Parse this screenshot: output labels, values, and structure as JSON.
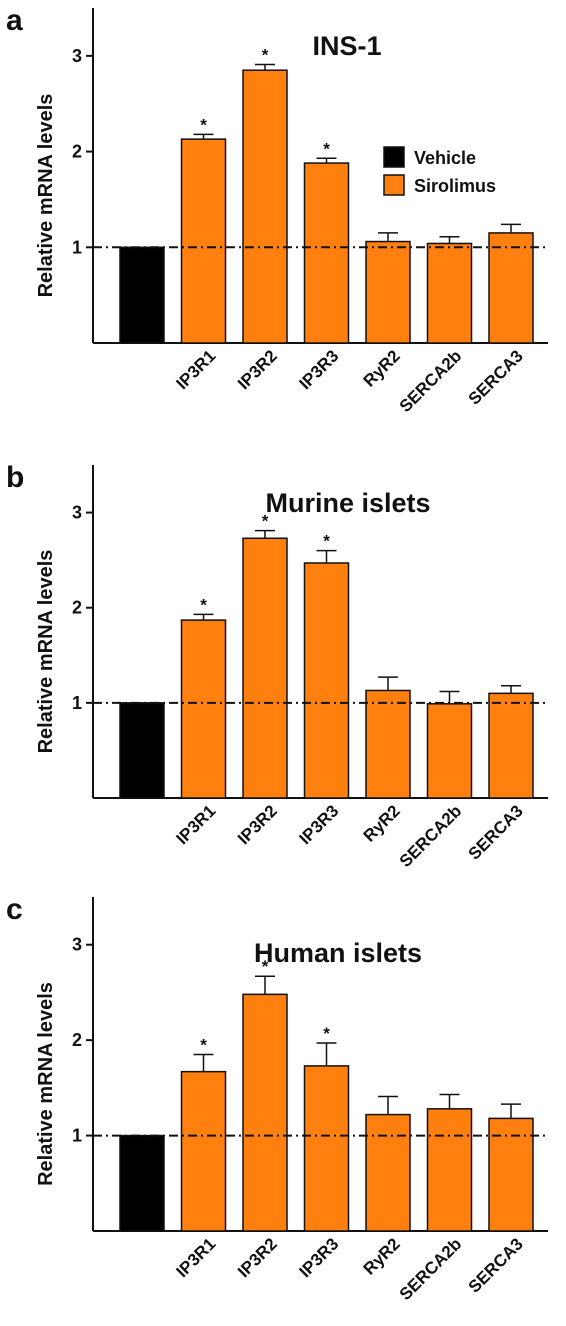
{
  "colors": {
    "vehicle": "#000000",
    "sirolimus": "#ff7f0f",
    "axis": "#111111"
  },
  "legend": {
    "items": [
      {
        "label": "Vehicle",
        "color": "#000000"
      },
      {
        "label": "Sirolimus",
        "color": "#ff7f0f"
      }
    ]
  },
  "chart_data": [
    {
      "type": "bar",
      "panel": "a",
      "title": "INS-1",
      "ylabel": "Relative mRNA levels",
      "ylim": [
        0,
        3.5
      ],
      "yticks": [
        "1",
        "2",
        "3"
      ],
      "categories": [
        "",
        "IP3R1",
        "IP3R2",
        "IP3R3",
        "RyR2",
        "SERCA2b",
        "SERCA3"
      ],
      "values": [
        1.0,
        2.13,
        2.85,
        1.88,
        1.06,
        1.04,
        1.15
      ],
      "errors": [
        0,
        0.05,
        0.06,
        0.05,
        0.09,
        0.07,
        0.09
      ],
      "significant": [
        false,
        true,
        true,
        true,
        false,
        false,
        false
      ],
      "significance_mark": "*",
      "series_colors": [
        "vehicle",
        "sirolimus",
        "sirolimus",
        "sirolimus",
        "sirolimus",
        "sirolimus",
        "sirolimus"
      ],
      "reference_line": 1,
      "legend": "top-right"
    },
    {
      "type": "bar",
      "panel": "b",
      "title": "Murine islets",
      "ylabel": "Relative mRNA levels",
      "ylim": [
        0,
        3.5
      ],
      "yticks": [
        "1",
        "2",
        "3"
      ],
      "categories": [
        "",
        "IP3R1",
        "IP3R2",
        "IP3R3",
        "RyR2",
        "SERCA2b",
        "SERCA3"
      ],
      "values": [
        1.0,
        1.87,
        2.73,
        2.47,
        1.13,
        0.99,
        1.1
      ],
      "errors": [
        0,
        0.06,
        0.08,
        0.13,
        0.14,
        0.13,
        0.08
      ],
      "significant": [
        false,
        true,
        true,
        true,
        false,
        false,
        false
      ],
      "significance_mark": "*",
      "series_colors": [
        "vehicle",
        "sirolimus",
        "sirolimus",
        "sirolimus",
        "sirolimus",
        "sirolimus",
        "sirolimus"
      ],
      "reference_line": 1
    },
    {
      "type": "bar",
      "panel": "c",
      "title": "Human islets",
      "ylabel": "Relative mRNA levels",
      "ylim": [
        0,
        3.5
      ],
      "yticks": [
        "1",
        "2",
        "3"
      ],
      "categories": [
        "",
        "IP3R1",
        "IP3R2",
        "IP3R3",
        "RyR2",
        "SERCA2b",
        "SERCA3"
      ],
      "values": [
        1.0,
        1.67,
        2.48,
        1.73,
        1.22,
        1.28,
        1.18
      ],
      "errors": [
        0,
        0.18,
        0.19,
        0.24,
        0.19,
        0.15,
        0.15
      ],
      "significant": [
        false,
        true,
        true,
        true,
        false,
        false,
        false
      ],
      "significance_mark": "*",
      "series_colors": [
        "vehicle",
        "sirolimus",
        "sirolimus",
        "sirolimus",
        "sirolimus",
        "sirolimus",
        "sirolimus"
      ],
      "reference_line": 1
    }
  ]
}
